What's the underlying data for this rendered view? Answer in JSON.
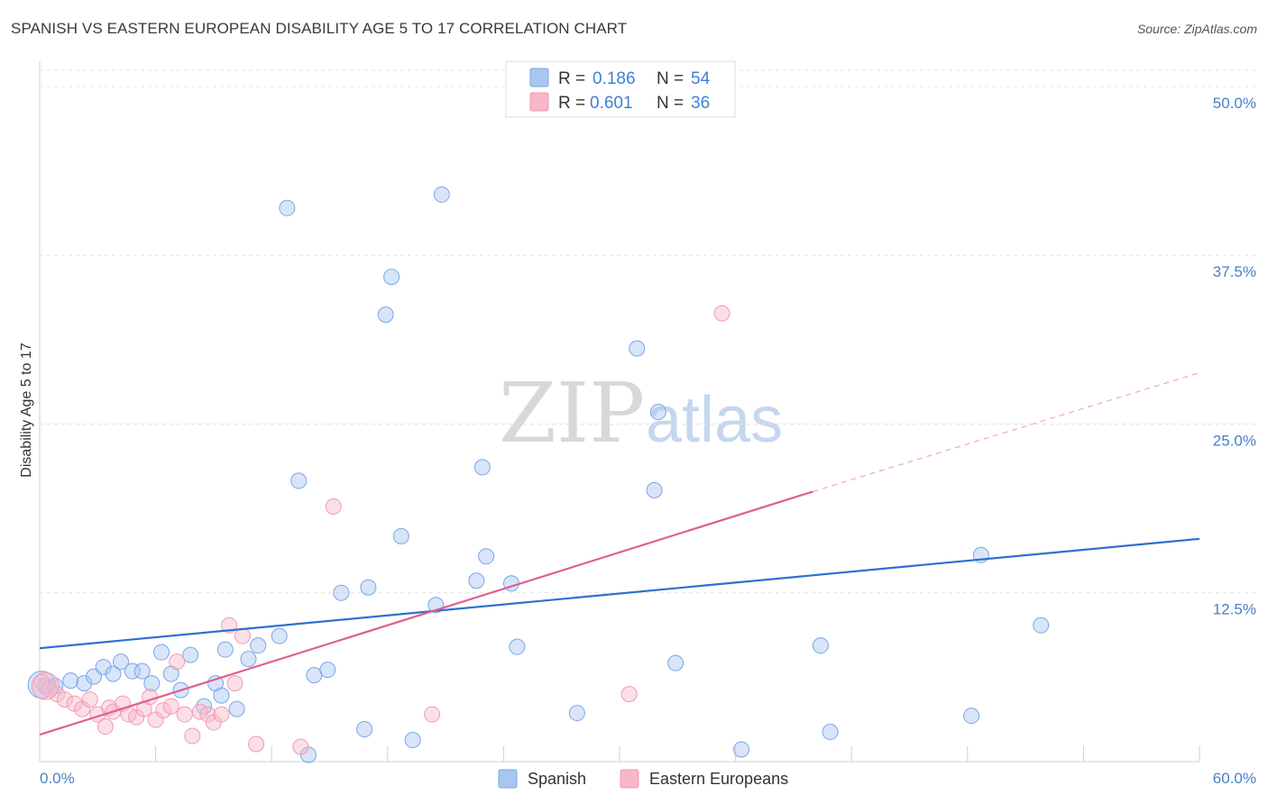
{
  "title": "SPANISH VS EASTERN EUROPEAN DISABILITY AGE 5 TO 17 CORRELATION CHART",
  "source": "Source: ZipAtlas.com",
  "watermark": {
    "zip": "ZIP",
    "atlas": "atlas"
  },
  "legend": {
    "rows": [
      {
        "r_label": "R =",
        "r_value": "0.186",
        "n_label": "N =",
        "n_value": "54",
        "color": "#a9c6ef"
      },
      {
        "r_label": "R =",
        "r_value": "0.601",
        "n_label": "N =",
        "n_value": "36",
        "color": "#f6b7c9"
      }
    ]
  },
  "bottom_legend": [
    {
      "label": "Spanish",
      "color": "#a9c6ef"
    },
    {
      "label": "Eastern Europeans",
      "color": "#f6b7c9"
    }
  ],
  "chart_data": {
    "type": "scatter",
    "title": "SPANISH VS EASTERN EUROPEAN DISABILITY AGE 5 TO 17 CORRELATION CHART",
    "xlabel": "",
    "ylabel": "Disability Age 5 to 17",
    "xlim": [
      0,
      60
    ],
    "ylim": [
      0,
      50
    ],
    "x_tick_labels": [
      "0.0%",
      "60.0%"
    ],
    "y_ticks": [
      12.5,
      25.0,
      37.5,
      50.0
    ],
    "y_tick_labels": [
      "12.5%",
      "25.0%",
      "37.5%",
      "50.0%"
    ],
    "grid": true,
    "legend_position": "top-center",
    "series": [
      {
        "name": "Spanish",
        "color": "#7aa7e6",
        "trend": {
          "x": [
            0,
            60
          ],
          "y": [
            8.4,
            16.5
          ],
          "color": "#2f6fcf"
        },
        "points": [
          [
            0.3,
            5.6
          ],
          [
            0.8,
            5.6
          ],
          [
            1.6,
            6.0
          ],
          [
            2.3,
            5.8
          ],
          [
            2.8,
            6.3
          ],
          [
            3.3,
            7.0
          ],
          [
            3.8,
            6.5
          ],
          [
            4.2,
            7.4
          ],
          [
            4.8,
            6.7
          ],
          [
            5.3,
            6.7
          ],
          [
            5.8,
            5.8
          ],
          [
            6.3,
            8.1
          ],
          [
            6.8,
            6.5
          ],
          [
            7.3,
            5.3
          ],
          [
            7.8,
            7.9
          ],
          [
            8.5,
            4.1
          ],
          [
            9.1,
            5.8
          ],
          [
            9.4,
            4.9
          ],
          [
            9.6,
            8.3
          ],
          [
            10.2,
            3.9
          ],
          [
            10.8,
            7.6
          ],
          [
            11.3,
            8.6
          ],
          [
            12.4,
            9.3
          ],
          [
            12.8,
            41.0
          ],
          [
            13.4,
            20.8
          ],
          [
            13.9,
            0.5
          ],
          [
            14.2,
            6.4
          ],
          [
            14.9,
            6.8
          ],
          [
            15.6,
            12.5
          ],
          [
            16.8,
            2.4
          ],
          [
            17.0,
            12.9
          ],
          [
            17.9,
            33.1
          ],
          [
            18.2,
            35.9
          ],
          [
            18.7,
            16.7
          ],
          [
            19.3,
            1.6
          ],
          [
            20.5,
            11.6
          ],
          [
            20.8,
            42.0
          ],
          [
            22.6,
            13.4
          ],
          [
            22.9,
            21.8
          ],
          [
            23.1,
            15.2
          ],
          [
            24.4,
            13.2
          ],
          [
            24.7,
            8.5
          ],
          [
            27.8,
            3.6
          ],
          [
            30.9,
            30.6
          ],
          [
            31.8,
            20.1
          ],
          [
            32.0,
            25.9
          ],
          [
            32.9,
            7.3
          ],
          [
            36.3,
            0.9
          ],
          [
            40.4,
            8.6
          ],
          [
            40.9,
            2.2
          ],
          [
            48.2,
            3.4
          ],
          [
            48.7,
            15.3
          ],
          [
            51.8,
            10.1
          ],
          [
            0.1,
            5.7
          ]
        ]
      },
      {
        "name": "Eastern Europeans",
        "color": "#f29ab4",
        "trend": {
          "x": [
            0,
            40
          ],
          "y": [
            2.0,
            20.0
          ],
          "color": "#e0608b"
        },
        "trend_extension": {
          "x": [
            40,
            60
          ],
          "y": [
            20.0,
            28.8
          ]
        },
        "points": [
          [
            0.1,
            5.9
          ],
          [
            0.5,
            5.4
          ],
          [
            0.9,
            5.0
          ],
          [
            1.3,
            4.6
          ],
          [
            1.8,
            4.3
          ],
          [
            2.2,
            3.9
          ],
          [
            2.6,
            4.6
          ],
          [
            3.0,
            3.5
          ],
          [
            3.4,
            2.6
          ],
          [
            3.6,
            4.0
          ],
          [
            3.8,
            3.7
          ],
          [
            4.3,
            4.3
          ],
          [
            4.6,
            3.5
          ],
          [
            5.0,
            3.3
          ],
          [
            5.4,
            3.9
          ],
          [
            5.7,
            4.8
          ],
          [
            6.0,
            3.1
          ],
          [
            6.4,
            3.8
          ],
          [
            6.8,
            4.1
          ],
          [
            7.1,
            7.4
          ],
          [
            7.5,
            3.5
          ],
          [
            7.9,
            1.9
          ],
          [
            8.3,
            3.7
          ],
          [
            8.7,
            3.5
          ],
          [
            9.0,
            2.9
          ],
          [
            9.4,
            3.5
          ],
          [
            9.8,
            10.1
          ],
          [
            10.1,
            5.8
          ],
          [
            10.5,
            9.3
          ],
          [
            11.2,
            1.3
          ],
          [
            13.5,
            1.1
          ],
          [
            15.2,
            18.9
          ],
          [
            20.3,
            3.5
          ],
          [
            30.5,
            5.0
          ],
          [
            35.3,
            33.2
          ],
          [
            0.3,
            5.6
          ]
        ]
      }
    ]
  }
}
